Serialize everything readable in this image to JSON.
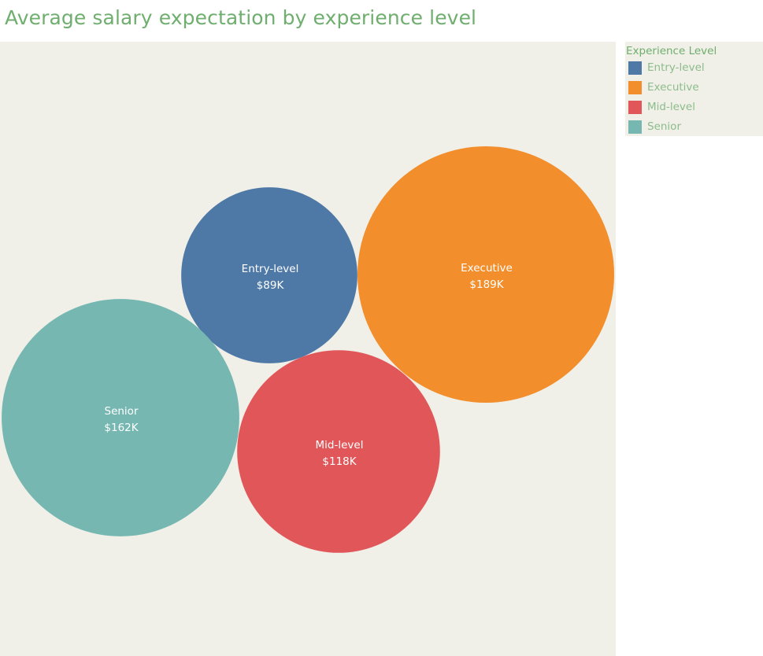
{
  "title": "Average salary expectation by experience level",
  "legend": {
    "title": "Experience Level",
    "items": [
      {
        "label": "Entry-level",
        "color": "#4e79a7"
      },
      {
        "label": "Executive",
        "color": "#f28e2b"
      },
      {
        "label": "Mid-level",
        "color": "#e15759"
      },
      {
        "label": "Senior",
        "color": "#76b7b2"
      }
    ]
  },
  "chart_data": {
    "type": "bubble",
    "title": "Average salary expectation by experience level",
    "size_encodes": "average salary",
    "series": [
      {
        "name": "Entry-level",
        "value": 89,
        "label": "$89K",
        "color": "#4e79a7"
      },
      {
        "name": "Executive",
        "value": 189,
        "label": "$189K",
        "color": "#f28e2b"
      },
      {
        "name": "Mid-level",
        "value": 118,
        "label": "$118K",
        "color": "#e15759"
      },
      {
        "name": "Senior",
        "value": 162,
        "label": "$162K",
        "color": "#76b7b2"
      }
    ]
  }
}
